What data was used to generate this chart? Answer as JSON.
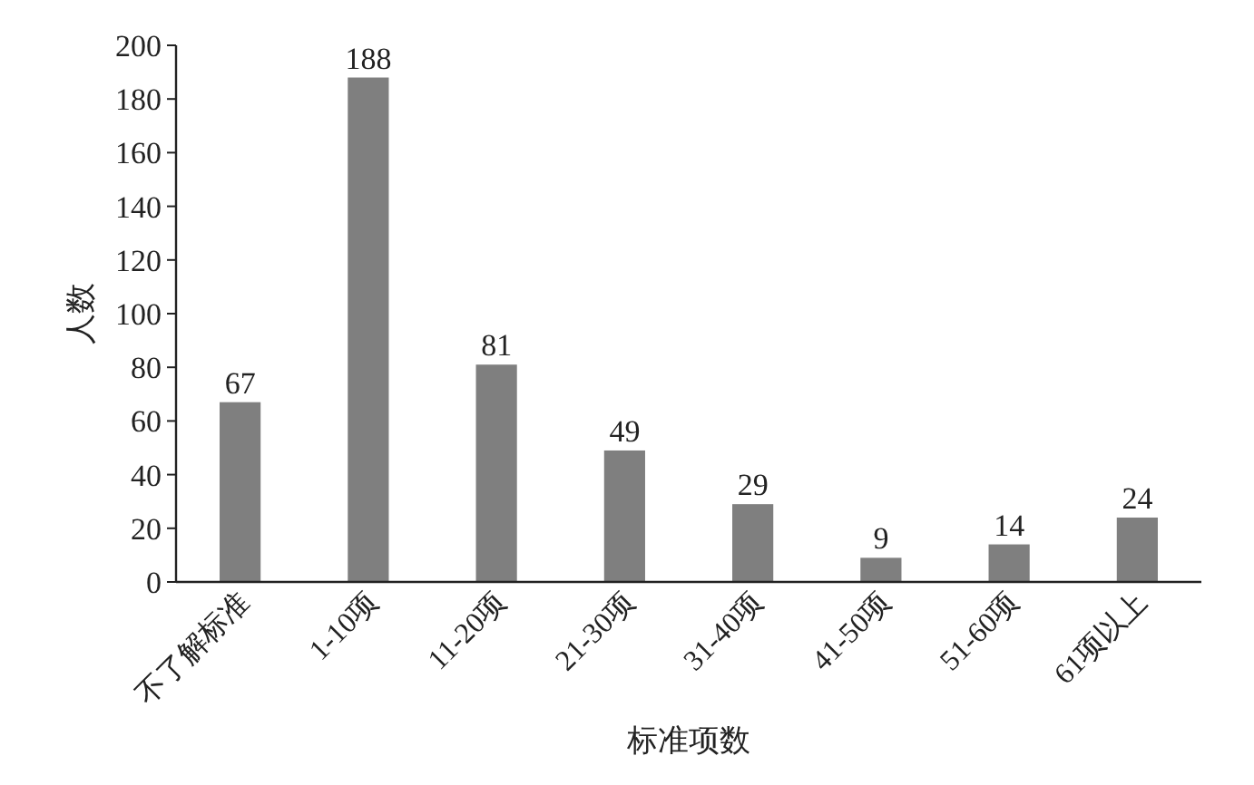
{
  "chart_data": {
    "type": "bar",
    "xlabel": "标准项数",
    "ylabel": "人数",
    "categories": [
      "不了解标准",
      "1-10项",
      "11-20项",
      "21-30项",
      "31-40项",
      "41-50项",
      "51-60项",
      "61项以上"
    ],
    "values": [
      67,
      188,
      81,
      49,
      29,
      9,
      14,
      24
    ],
    "color": "#7f7f7f",
    "ylim": [
      0,
      200
    ],
    "yticks": [
      0,
      20,
      40,
      60,
      80,
      100,
      120,
      140,
      160,
      180,
      200
    ],
    "data_labels": true,
    "grid": false
  }
}
